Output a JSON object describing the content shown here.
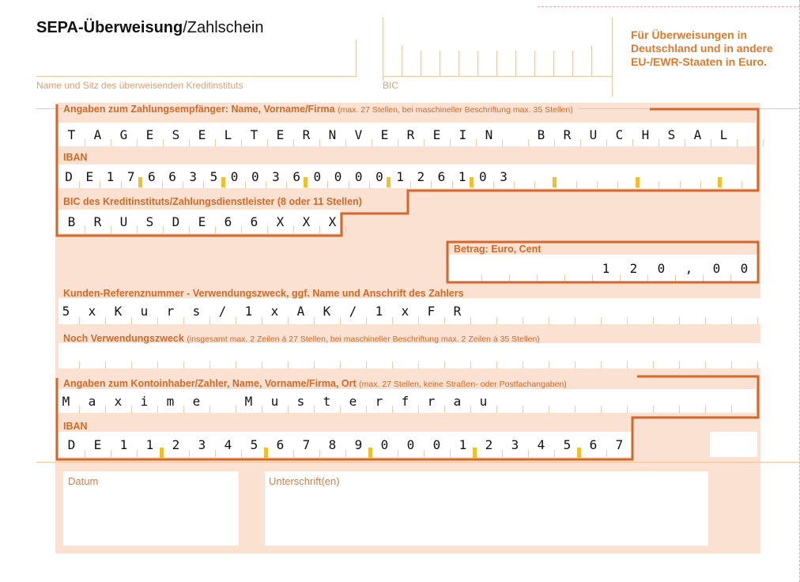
{
  "header": {
    "title_bold": "SEPA-Überweisung",
    "title_rest": "/Zahlschein",
    "bank_label": "Name und Sitz des überweisenden Kreditinstituts",
    "bic_label": "BIC",
    "notice": "Für Überweisungen in Deutschland und in andere EU-/EWR-Staaten in Euro."
  },
  "recipient": {
    "label": "Angaben zum Zahlungsempfänger: Name, Vorname/Firma",
    "label_note": "(max. 27 Stellen, bei maschineller Beschriftung max. 35 Stellen)",
    "name_chars": [
      "T",
      "A",
      "G",
      "E",
      "S",
      "E",
      "L",
      "T",
      "E",
      "R",
      "N",
      "V",
      "E",
      "R",
      "E",
      "I",
      "N",
      "",
      "B",
      "R",
      "U",
      "C",
      "H",
      "S",
      "A",
      "L",
      ""
    ],
    "iban_label": "IBAN",
    "iban_chars": [
      "D",
      "E",
      "1",
      "7",
      "6",
      "6",
      "3",
      "5",
      "0",
      "0",
      "3",
      "6",
      "0",
      "0",
      "0",
      "0",
      "1",
      "2",
      "6",
      "1",
      "0",
      "3",
      "",
      "",
      "",
      "",
      "",
      "",
      "",
      "",
      "",
      "",
      ""
    ],
    "bic_label": "BIC des Kreditinstituts/Zahlungsdienstleister (8 oder 11 Stellen)",
    "bic_chars": [
      "B",
      "R",
      "U",
      "S",
      "D",
      "E",
      "6",
      "6",
      "X",
      "X",
      "X"
    ]
  },
  "amount": {
    "label": "Betrag: Euro, Cent",
    "chars": [
      "",
      "",
      "",
      "",
      "",
      "1",
      "2",
      "0",
      ",",
      "0",
      "0"
    ]
  },
  "reference": {
    "label": "Kunden-Referenznummer - Verwendungszweck, ggf. Name und Anschrift des Zahlers",
    "chars": [
      "5",
      "x",
      "K",
      "u",
      "r",
      "s",
      "/",
      "1",
      "x",
      "A",
      "K",
      "/",
      "1",
      "x",
      "F",
      "R",
      "",
      "",
      "",
      "",
      "",
      "",
      "",
      "",
      "",
      "",
      ""
    ]
  },
  "reference2": {
    "label": "Noch Verwendungszweck",
    "label_note": "(insgesamt max. 2 Zeilen á 27 Stellen, bei maschineller Beschriftung max. 2 Zeilen á 35 Stellen)"
  },
  "payer": {
    "label": "Angaben zum Kontoinhaber/Zahler, Name, Vorname/Firma, Ort",
    "label_note": "(max. 27 Stellen, keine Straßen- oder Postfachangaben)",
    "name_chars": [
      "M",
      "a",
      "x",
      "i",
      "m",
      "e",
      "",
      "M",
      "u",
      "s",
      "t",
      "e",
      "r",
      "f",
      "r",
      "a",
      "u",
      "",
      "",
      "",
      "",
      "",
      "",
      "",
      "",
      "",
      ""
    ],
    "iban_label": "IBAN",
    "iban_chars": [
      "D",
      "E",
      "1",
      "1",
      "2",
      "3",
      "4",
      "5",
      "6",
      "7",
      "8",
      "9",
      "0",
      "0",
      "0",
      "1",
      "2",
      "3",
      "4",
      "5",
      "6",
      "7"
    ]
  },
  "footer": {
    "date_label": "Datum",
    "signature_label": "Unterschrift(en)"
  },
  "colors": {
    "accent": "#d4672b",
    "label": "#cf6a2a",
    "peach": "#fbe1d1",
    "marker": "#f2be2b"
  }
}
